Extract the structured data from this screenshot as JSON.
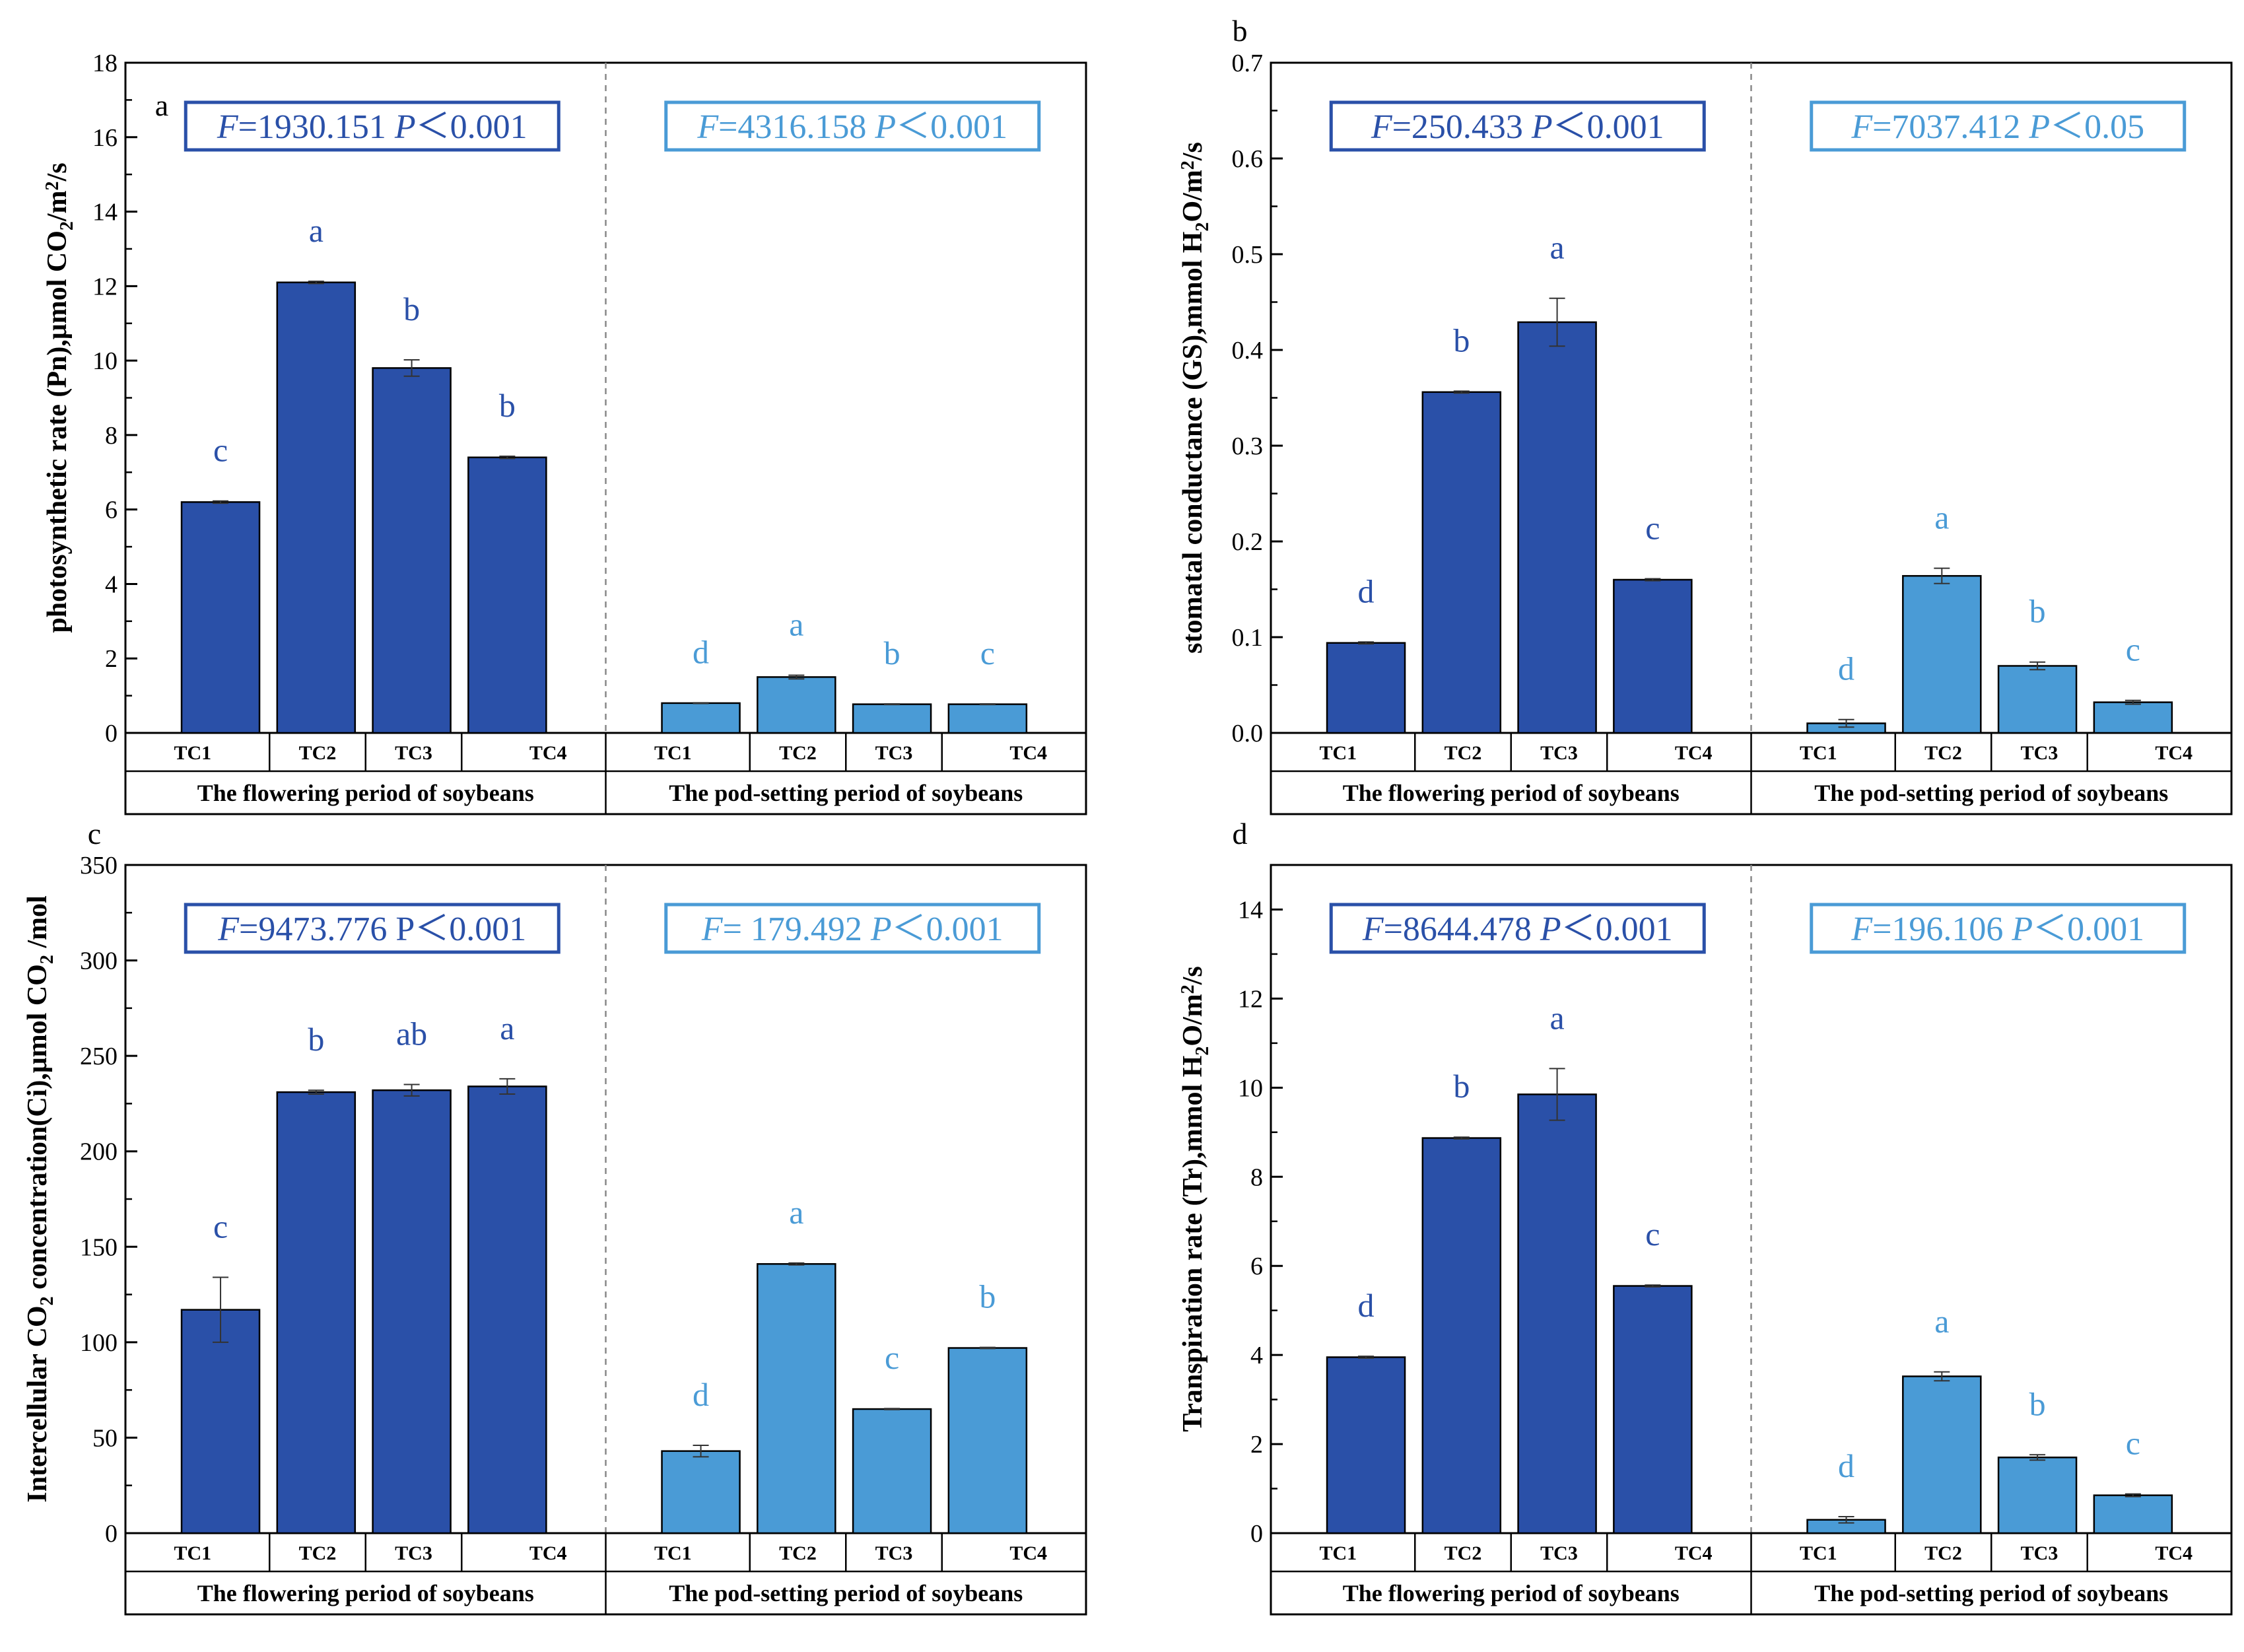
{
  "colors": {
    "flowering_bar": "#2a50a8",
    "pod_bar": "#4a9bd6",
    "flowering_text": "#2a50a8",
    "pod_text": "#4a9bd6",
    "axis": "#000000",
    "divider": "#888888"
  },
  "chart_data": [
    {
      "type": "bar",
      "panel_letter": "a",
      "ylabel_main": "photosynthetic rate (Pn),μmol CO",
      "ylabel_sub": "2",
      "ylabel_tail": "/m",
      "ylabel_sup": "2",
      "ylabel_end": "/s",
      "ylim": [
        0,
        18
      ],
      "yticks": [
        0,
        2,
        4,
        6,
        8,
        10,
        12,
        14,
        16,
        18
      ],
      "ytick_labels": [
        "0",
        "2",
        "4",
        "6",
        "8",
        "10",
        "12",
        "14",
        "16",
        "18"
      ],
      "categories": [
        "TC1",
        "TC2",
        "TC3",
        "TC4"
      ],
      "groups": [
        {
          "name": "The flowering period of soybeans",
          "stat_f_label": "F",
          "stat_f_value": "=1930.151 ",
          "stat_p_label": "P",
          "stat_p_value": "＜0.001",
          "values": [
            6.2,
            12.1,
            9.8,
            7.4
          ],
          "errors": [
            0.03,
            0.03,
            0.22,
            0.03
          ],
          "letters": [
            "c",
            "a",
            "b",
            "b"
          ]
        },
        {
          "name": "The pod-setting period of soybeans",
          "stat_f_label": "F",
          "stat_f_value": "=4316.158 ",
          "stat_p_label": "P",
          "stat_p_value": "＜0.001",
          "values": [
            0.8,
            1.5,
            0.77,
            0.77
          ],
          "errors": [
            0.01,
            0.05,
            0.01,
            0.01
          ],
          "letters": [
            "d",
            "a",
            "b",
            "c"
          ]
        }
      ]
    },
    {
      "type": "bar",
      "panel_letter": "b",
      "ylabel_main": "stomatal conductance (GS),mmol H",
      "ylabel_sub": "2",
      "ylabel_tail": "O/m",
      "ylabel_sup": "2",
      "ylabel_end": "/s",
      "ylim": [
        0,
        0.7
      ],
      "yticks": [
        0,
        0.1,
        0.2,
        0.3,
        0.4,
        0.5,
        0.6,
        0.7
      ],
      "ytick_labels": [
        "0.0",
        "0.1",
        "0.2",
        "0.3",
        "0.4",
        "0.5",
        "0.6",
        "0.7"
      ],
      "categories": [
        "TC1",
        "TC2",
        "TC3",
        "TC4"
      ],
      "groups": [
        {
          "name": "The flowering period of soybeans",
          "stat_f_label": "F",
          "stat_f_value": "=250.433 ",
          "stat_p_label": "P",
          "stat_p_value": "＜0.001",
          "values": [
            0.094,
            0.356,
            0.429,
            0.16
          ],
          "errors": [
            0.001,
            0.001,
            0.025,
            0.001
          ],
          "letters": [
            "d",
            "b",
            "a",
            "c"
          ]
        },
        {
          "name": "The pod-setting period of soybeans",
          "stat_f_label": "F",
          "stat_f_value": "=7037.412 ",
          "stat_p_label": "P",
          "stat_p_value": "＜0.05",
          "values": [
            0.01,
            0.164,
            0.07,
            0.032
          ],
          "errors": [
            0.004,
            0.008,
            0.004,
            0.002
          ],
          "letters": [
            "d",
            "a",
            "b",
            "c"
          ]
        }
      ]
    },
    {
      "type": "bar",
      "panel_letter": "c",
      "ylabel_main": "Intercellular CO",
      "ylabel_sub": "2",
      "ylabel_tail": " concentration(Ci),μmol CO",
      "ylabel_sub2": "2",
      "ylabel_end": " /mol",
      "ylim": [
        0,
        350
      ],
      "yticks": [
        0,
        50,
        100,
        150,
        200,
        250,
        300,
        350
      ],
      "ytick_labels": [
        "0",
        "50",
        "100",
        "150",
        "200",
        "250",
        "300",
        "350"
      ],
      "categories": [
        "TC1",
        "TC2",
        "TC3",
        "TC4"
      ],
      "groups": [
        {
          "name": "The flowering period of soybeans",
          "stat_f_label": "F",
          "stat_f_value": "=9473.776 P＜0.001",
          "stat_p_label": "",
          "stat_p_value": "",
          "values": [
            117,
            231,
            232,
            234
          ],
          "errors": [
            17,
            1,
            3,
            4
          ],
          "letters": [
            "c",
            "b",
            "ab",
            "a"
          ]
        },
        {
          "name": "The pod-setting period of soybeans",
          "stat_f_label": "F",
          "stat_f_value": "= 179.492 ",
          "stat_p_label": "P",
          "stat_p_value": "＜0.001",
          "values": [
            43,
            141,
            65,
            97
          ],
          "errors": [
            3,
            0.5,
            0.3,
            0.3
          ],
          "letters": [
            "d",
            "a",
            "c",
            "b"
          ]
        }
      ]
    },
    {
      "type": "bar",
      "panel_letter": "d",
      "ylabel_main": "Transpiration rate (Tr),mmol H",
      "ylabel_sub": "2",
      "ylabel_tail": "O/m",
      "ylabel_sup": "2",
      "ylabel_end": "/s",
      "ylim": [
        0,
        15
      ],
      "yticks": [
        0,
        2,
        4,
        6,
        8,
        10,
        12,
        14
      ],
      "ytick_labels": [
        "0",
        "2",
        "4",
        "6",
        "8",
        "10",
        "12",
        "14"
      ],
      "categories": [
        "TC1",
        "TC2",
        "TC3",
        "TC4"
      ],
      "groups": [
        {
          "name": "The flowering period of soybeans",
          "stat_f_label": "F",
          "stat_f_value": "=8644.478 ",
          "stat_p_label": "P",
          "stat_p_value": "＜0.001",
          "values": [
            3.95,
            8.87,
            9.85,
            5.55
          ],
          "errors": [
            0.02,
            0.02,
            0.58,
            0.02
          ],
          "letters": [
            "d",
            "b",
            "a",
            "c"
          ]
        },
        {
          "name": "The pod-setting period of soybeans",
          "stat_f_label": "F",
          "stat_f_value": "=196.106 ",
          "stat_p_label": "P",
          "stat_p_value": "＜0.001",
          "values": [
            0.3,
            3.52,
            1.7,
            0.85
          ],
          "errors": [
            0.07,
            0.1,
            0.06,
            0.03
          ],
          "letters": [
            "d",
            "a",
            "b",
            "c"
          ]
        }
      ]
    }
  ]
}
